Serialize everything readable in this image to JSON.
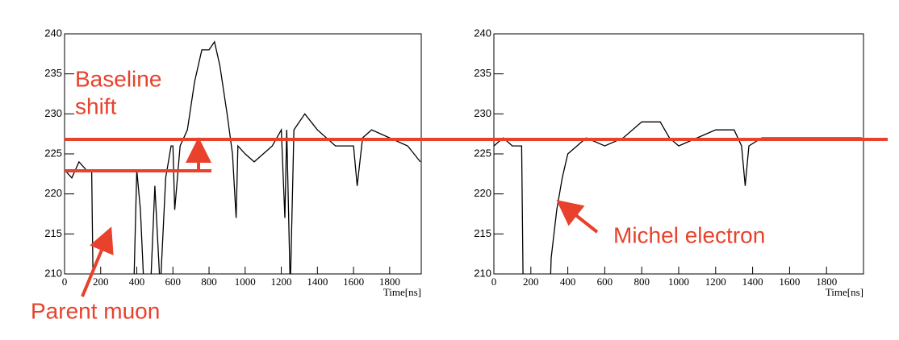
{
  "chart_data": [
    {
      "type": "line",
      "x_label": "Time[ns]",
      "color": "#000000",
      "xlim": [
        0,
        1975
      ],
      "ylim": [
        210,
        240
      ],
      "xticks": [
        0,
        200,
        400,
        600,
        800,
        1000,
        1200,
        1400,
        1600,
        1800
      ],
      "yticks": [
        210,
        215,
        220,
        225,
        230,
        235,
        240
      ],
      "annotations": [
        "Baseline",
        "shift",
        "Parent muon"
      ],
      "x": [
        0,
        40,
        80,
        120,
        150,
        160,
        380,
        400,
        420,
        440,
        470,
        500,
        530,
        560,
        590,
        600,
        610,
        640,
        680,
        720,
        760,
        800,
        830,
        860,
        900,
        930,
        950,
        960,
        1000,
        1050,
        1100,
        1150,
        1200,
        1220,
        1230,
        1250,
        1270,
        1330,
        1400,
        1450,
        1500,
        1600,
        1620,
        1650,
        1700,
        1800,
        1900,
        1970
      ],
      "values": [
        223,
        222,
        224,
        223,
        223,
        205,
        205,
        223,
        218,
        208,
        205,
        221,
        208,
        222,
        226,
        226,
        218,
        226,
        228,
        234,
        238,
        238,
        239,
        236,
        230,
        225,
        217,
        226,
        225,
        224,
        225,
        226,
        228,
        217,
        228,
        208,
        228,
        230,
        228,
        227,
        226,
        226,
        221,
        227,
        228,
        227,
        226,
        224
      ]
    },
    {
      "type": "line",
      "x_label": "Time[ns]",
      "color": "#000000",
      "xlim": [
        0,
        2000
      ],
      "ylim": [
        210,
        240
      ],
      "xticks": [
        0,
        200,
        400,
        600,
        800,
        1000,
        1200,
        1400,
        1600,
        1800
      ],
      "yticks": [
        210,
        215,
        220,
        225,
        230,
        235,
        240
      ],
      "annotations": [
        "Michel electron"
      ],
      "x": [
        0,
        50,
        100,
        150,
        160,
        300,
        310,
        340,
        370,
        400,
        450,
        500,
        600,
        700,
        800,
        900,
        950,
        1000,
        1100,
        1200,
        1300,
        1340,
        1360,
        1380,
        1450,
        1600,
        1800,
        1990
      ],
      "values": [
        226,
        227,
        226,
        226,
        205,
        205,
        212,
        218,
        222,
        225,
        226,
        227,
        226,
        227,
        229,
        229,
        227,
        226,
        227,
        228,
        228,
        226,
        221,
        226,
        227,
        227,
        227,
        227
      ]
    }
  ]
}
